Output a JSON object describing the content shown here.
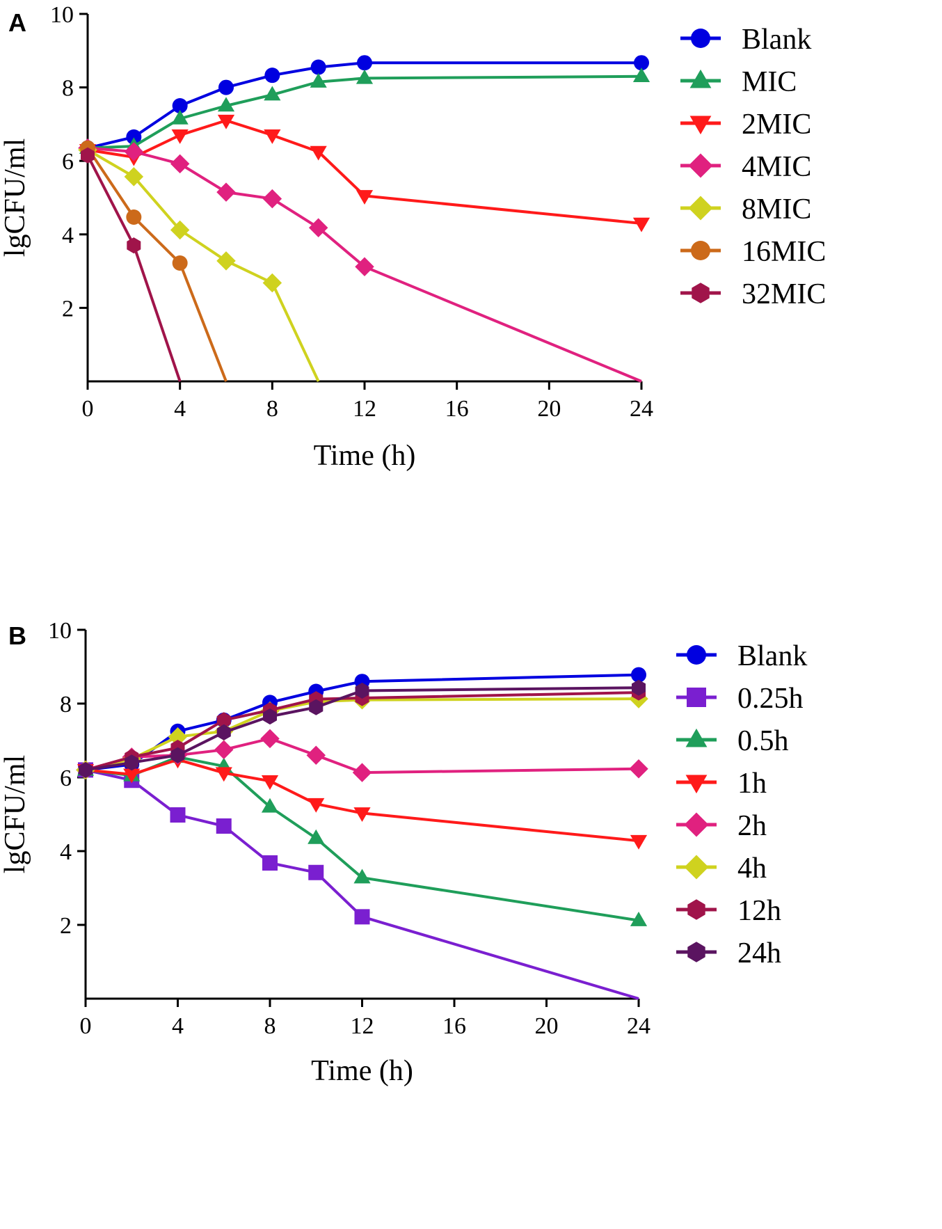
{
  "chart_data": [
    {
      "panel_label": "A",
      "type": "line",
      "xlabel": "Time (h)",
      "ylabel": "lgCFU/ml",
      "xlim": [
        0,
        24
      ],
      "ylim": [
        0,
        10
      ],
      "xticks": [
        0,
        4,
        8,
        12,
        16,
        20,
        24
      ],
      "yticks": [
        2,
        4,
        6,
        8,
        10
      ],
      "legend_position": "top-right",
      "series": [
        {
          "name": "Blank",
          "color": "#0000e0",
          "marker": "circle",
          "x": [
            0,
            2,
            4,
            6,
            8,
            10,
            12,
            24
          ],
          "y": [
            6.35,
            6.65,
            7.5,
            8.0,
            8.33,
            8.55,
            8.67,
            8.67
          ]
        },
        {
          "name": "MIC",
          "color": "#1f9e5a",
          "marker": "triangle-up",
          "x": [
            0,
            2,
            4,
            6,
            8,
            10,
            12,
            24
          ],
          "y": [
            6.35,
            6.4,
            7.15,
            7.5,
            7.8,
            8.15,
            8.25,
            8.3
          ]
        },
        {
          "name": "2MIC",
          "color": "#ff1a1a",
          "marker": "triangle-down",
          "x": [
            0,
            2,
            4,
            6,
            8,
            10,
            12,
            24
          ],
          "y": [
            6.3,
            6.1,
            6.7,
            7.1,
            6.7,
            6.25,
            5.05,
            4.3
          ]
        },
        {
          "name": "4MIC",
          "color": "#e0217f",
          "marker": "diamond",
          "x": [
            0,
            2,
            4,
            6,
            8,
            10,
            12,
            24
          ],
          "y": [
            6.35,
            6.25,
            5.92,
            5.15,
            4.97,
            4.18,
            3.12,
            0
          ]
        },
        {
          "name": "8MIC",
          "color": "#cfd21f",
          "marker": "diamond",
          "x": [
            0,
            2,
            4,
            6,
            8,
            10
          ],
          "y": [
            6.3,
            5.57,
            4.12,
            3.28,
            2.68,
            0
          ]
        },
        {
          "name": "16MIC",
          "color": "#cc6a1a",
          "marker": "circle",
          "x": [
            0,
            2,
            4,
            6
          ],
          "y": [
            6.35,
            4.47,
            3.22,
            0
          ]
        },
        {
          "name": "32MIC",
          "color": "#a0144a",
          "marker": "hexagon",
          "x": [
            0,
            2,
            4
          ],
          "y": [
            6.15,
            3.7,
            0
          ]
        }
      ]
    },
    {
      "panel_label": "B",
      "type": "line",
      "xlabel": "Time (h)",
      "ylabel": "lgCFU/ml",
      "xlim": [
        0,
        24
      ],
      "ylim": [
        0,
        10
      ],
      "xticks": [
        0,
        4,
        8,
        12,
        16,
        20,
        24
      ],
      "yticks": [
        2,
        4,
        6,
        8,
        10
      ],
      "legend_position": "top-right",
      "series": [
        {
          "name": "Blank",
          "color": "#0000e0",
          "marker": "circle",
          "x": [
            0,
            2,
            4,
            6,
            8,
            10,
            12,
            24
          ],
          "y": [
            6.2,
            6.35,
            7.25,
            7.55,
            8.03,
            8.33,
            8.6,
            8.78
          ]
        },
        {
          "name": "0.25h",
          "color": "#7a1fd0",
          "marker": "square",
          "x": [
            0,
            2,
            4,
            6,
            8,
            10,
            12,
            24
          ],
          "y": [
            6.2,
            5.92,
            4.98,
            4.68,
            3.68,
            3.42,
            2.22,
            0
          ]
        },
        {
          "name": "0.5h",
          "color": "#1f9e5a",
          "marker": "triangle-up",
          "x": [
            0,
            2,
            4,
            6,
            8,
            10,
            12,
            24
          ],
          "y": [
            6.2,
            6.05,
            6.55,
            6.3,
            5.2,
            4.35,
            3.28,
            2.12
          ]
        },
        {
          "name": "1h",
          "color": "#ff1a1a",
          "marker": "triangle-down",
          "x": [
            0,
            2,
            4,
            6,
            8,
            10,
            12,
            24
          ],
          "y": [
            6.2,
            6.08,
            6.48,
            6.12,
            5.9,
            5.28,
            5.03,
            4.28
          ]
        },
        {
          "name": "2h",
          "color": "#e0217f",
          "marker": "diamond",
          "x": [
            0,
            2,
            4,
            6,
            8,
            10,
            12,
            24
          ],
          "y": [
            6.2,
            6.55,
            6.6,
            6.75,
            7.05,
            6.6,
            6.13,
            6.23
          ]
        },
        {
          "name": "4h",
          "color": "#cfd21f",
          "marker": "diamond",
          "x": [
            0,
            2,
            4,
            6,
            8,
            10,
            12,
            24
          ],
          "y": [
            6.2,
            6.5,
            7.1,
            7.25,
            7.8,
            8.05,
            8.1,
            8.13
          ]
        },
        {
          "name": "12h",
          "color": "#a0144a",
          "marker": "hexagon",
          "x": [
            0,
            2,
            4,
            6,
            8,
            10,
            12,
            24
          ],
          "y": [
            6.2,
            6.55,
            6.8,
            7.55,
            7.82,
            8.12,
            8.15,
            8.3
          ]
        },
        {
          "name": "24h",
          "color": "#5a1460",
          "marker": "hexagon",
          "x": [
            0,
            2,
            4,
            6,
            8,
            10,
            12,
            24
          ],
          "y": [
            6.2,
            6.4,
            6.6,
            7.22,
            7.65,
            7.9,
            8.35,
            8.43
          ]
        }
      ]
    }
  ]
}
